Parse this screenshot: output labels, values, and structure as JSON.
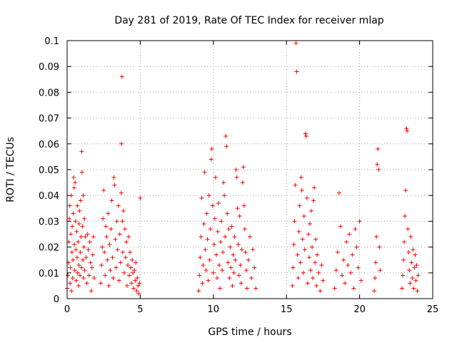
{
  "chart_data": {
    "type": "scatter",
    "title": "Day 281 of 2019, Rate Of TEC Index for receiver mlap",
    "xlabel": "GPS time / hours",
    "ylabel": "ROTI / TECUs",
    "xlim": [
      0,
      25
    ],
    "ylim": [
      0,
      0.1
    ],
    "xticks": [
      "0",
      "5",
      "10",
      "15",
      "20",
      "25"
    ],
    "yticks": [
      "0",
      "0.01",
      "0.02",
      "0.03",
      "0.04",
      "0.05",
      "0.06",
      "0.07",
      "0.08",
      "0.09",
      "0.1"
    ],
    "grid": true,
    "marker": "+",
    "color": "#ff0000",
    "series": [
      {
        "values": [
          [
            0.0,
            0.004
          ],
          [
            0.05,
            0.009
          ],
          [
            0.1,
            0.014
          ],
          [
            0.12,
            0.022
          ],
          [
            0.15,
            0.031
          ],
          [
            0.18,
            0.036
          ],
          [
            0.2,
            0.006
          ],
          [
            0.22,
            0.012
          ],
          [
            0.25,
            0.025
          ],
          [
            0.28,
            0.04
          ],
          [
            0.3,
            0.003
          ],
          [
            0.33,
            0.018
          ],
          [
            0.35,
            0.028
          ],
          [
            0.38,
            0.008
          ],
          [
            0.4,
            0.015
          ],
          [
            0.42,
            0.033
          ],
          [
            0.45,
            0.047
          ],
          [
            0.48,
            0.043
          ],
          [
            0.5,
            0.021
          ],
          [
            0.52,
            0.011
          ],
          [
            0.55,
            0.045
          ],
          [
            0.58,
            0.03
          ],
          [
            0.6,
            0.019
          ],
          [
            0.62,
            0.007
          ],
          [
            0.65,
            0.026
          ],
          [
            0.68,
            0.016
          ],
          [
            0.7,
            0.036
          ],
          [
            0.72,
            0.01
          ],
          [
            0.75,
            0.022
          ],
          [
            0.78,
            0.005
          ],
          [
            0.8,
            0.013
          ],
          [
            0.82,
            0.029
          ],
          [
            0.85,
            0.034
          ],
          [
            0.88,
            0.009
          ],
          [
            0.9,
            0.018
          ],
          [
            0.92,
            0.038
          ],
          [
            0.95,
            0.024
          ],
          [
            0.98,
            0.012
          ],
          [
            1.0,
            0.057
          ],
          [
            1.02,
            0.049
          ],
          [
            1.05,
            0.028
          ],
          [
            1.08,
            0.015
          ],
          [
            1.1,
            0.04
          ],
          [
            1.12,
            0.008
          ],
          [
            1.15,
            0.02
          ],
          [
            1.18,
            0.031
          ],
          [
            1.2,
            0.011
          ],
          [
            1.25,
            0.024
          ],
          [
            1.3,
            0.016
          ],
          [
            1.35,
            0.006
          ],
          [
            1.4,
            0.025
          ],
          [
            1.45,
            0.019
          ],
          [
            1.5,
            0.009
          ],
          [
            1.55,
            0.022
          ],
          [
            1.6,
            0.014
          ],
          [
            1.65,
            0.003
          ],
          [
            1.7,
            0.012
          ],
          [
            1.75,
            0.017
          ],
          [
            1.8,
            0.024
          ],
          [
            1.85,
            0.008
          ],
          [
            2.3,
            0.006
          ],
          [
            2.35,
            0.013
          ],
          [
            2.4,
            0.02
          ],
          [
            2.45,
            0.031
          ],
          [
            2.5,
            0.042
          ],
          [
            2.55,
            0.018
          ],
          [
            2.6,
            0.009
          ],
          [
            2.65,
            0.028
          ],
          [
            2.7,
            0.024
          ],
          [
            2.75,
            0.015
          ],
          [
            2.8,
            0.033
          ],
          [
            2.85,
            0.005
          ],
          [
            2.9,
            0.021
          ],
          [
            2.95,
            0.011
          ],
          [
            3.0,
            0.027
          ],
          [
            3.05,
            0.038
          ],
          [
            3.1,
            0.016
          ],
          [
            3.15,
            0.008
          ],
          [
            3.2,
            0.047
          ],
          [
            3.25,
            0.044
          ],
          [
            3.3,
            0.023
          ],
          [
            3.35,
            0.012
          ],
          [
            3.4,
            0.03
          ],
          [
            3.45,
            0.019
          ],
          [
            3.5,
            0.036
          ],
          [
            3.55,
            0.007
          ],
          [
            3.6,
            0.025
          ],
          [
            3.65,
            0.014
          ],
          [
            3.7,
            0.041
          ],
          [
            3.72,
            0.06
          ],
          [
            3.75,
            0.086
          ],
          [
            3.78,
            0.03
          ],
          [
            3.8,
            0.018
          ],
          [
            3.85,
            0.034
          ],
          [
            3.9,
            0.01
          ],
          [
            3.95,
            0.027
          ],
          [
            4.0,
            0.016
          ],
          [
            4.05,
            0.022
          ],
          [
            4.1,
            0.005
          ],
          [
            4.15,
            0.013
          ],
          [
            4.2,
            0.024
          ],
          [
            4.25,
            0.009
          ],
          [
            4.3,
            0.018
          ],
          [
            4.35,
            0.012
          ],
          [
            4.4,
            0.006
          ],
          [
            4.45,
            0.015
          ],
          [
            4.5,
            0.01
          ],
          [
            4.55,
            0.004
          ],
          [
            4.6,
            0.011
          ],
          [
            4.65,
            0.007
          ],
          [
            4.7,
            0.014
          ],
          [
            4.75,
            0.003
          ],
          [
            4.8,
            0.008
          ],
          [
            4.85,
            0.005
          ],
          [
            4.9,
            0.002
          ],
          [
            4.95,
            0.006
          ],
          [
            5.0,
            0.039
          ],
          [
            9.0,
            0.003
          ],
          [
            9.05,
            0.009
          ],
          [
            9.1,
            0.016
          ],
          [
            9.15,
            0.024
          ],
          [
            9.2,
            0.039
          ],
          [
            9.25,
            0.006
          ],
          [
            9.3,
            0.013
          ],
          [
            9.35,
            0.029
          ],
          [
            9.4,
            0.049
          ],
          [
            9.45,
            0.019
          ],
          [
            9.5,
            0.011
          ],
          [
            9.55,
            0.033
          ],
          [
            9.6,
            0.023
          ],
          [
            9.65,
            0.007
          ],
          [
            9.7,
            0.04
          ],
          [
            9.75,
            0.015
          ],
          [
            9.8,
            0.027
          ],
          [
            9.85,
            0.054
          ],
          [
            9.9,
            0.058
          ],
          [
            9.95,
            0.036
          ],
          [
            10.0,
            0.01
          ],
          [
            10.05,
            0.021
          ],
          [
            10.1,
            0.031
          ],
          [
            10.15,
            0.047
          ],
          [
            10.2,
            0.017
          ],
          [
            10.25,
            0.008
          ],
          [
            10.3,
            0.026
          ],
          [
            10.35,
            0.037
          ],
          [
            10.4,
            0.013
          ],
          [
            10.45,
            0.004
          ],
          [
            10.5,
            0.022
          ],
          [
            10.55,
            0.03
          ],
          [
            10.6,
            0.011
          ],
          [
            10.65,
            0.018
          ],
          [
            10.7,
            0.045
          ],
          [
            10.75,
            0.04
          ],
          [
            10.8,
            0.024
          ],
          [
            10.85,
            0.063
          ],
          [
            10.9,
            0.059
          ],
          [
            10.95,
            0.033
          ],
          [
            11.0,
            0.014
          ],
          [
            11.05,
            0.027
          ],
          [
            11.1,
            0.008
          ],
          [
            11.15,
            0.02
          ],
          [
            11.2,
            0.012
          ],
          [
            11.25,
            0.028
          ],
          [
            11.3,
            0.005
          ],
          [
            11.35,
            0.017
          ],
          [
            11.4,
            0.01
          ],
          [
            11.45,
            0.024
          ],
          [
            11.5,
            0.015
          ],
          [
            11.55,
            0.05
          ],
          [
            11.6,
            0.047
          ],
          [
            11.65,
            0.035
          ],
          [
            11.7,
            0.021
          ],
          [
            11.75,
            0.009
          ],
          [
            11.8,
            0.032
          ],
          [
            11.85,
            0.013
          ],
          [
            11.9,
            0.006
          ],
          [
            11.95,
            0.019
          ],
          [
            12.0,
            0.045
          ],
          [
            12.05,
            0.051
          ],
          [
            12.1,
            0.036
          ],
          [
            12.15,
            0.027
          ],
          [
            12.2,
            0.018
          ],
          [
            12.25,
            0.011
          ],
          [
            12.3,
            0.004
          ],
          [
            12.4,
            0.015
          ],
          [
            12.5,
            0.024
          ],
          [
            12.6,
            0.008
          ],
          [
            12.7,
            0.019
          ],
          [
            12.8,
            0.012
          ],
          [
            12.9,
            0.004
          ],
          [
            15.4,
            0.005
          ],
          [
            15.45,
            0.012
          ],
          [
            15.5,
            0.021
          ],
          [
            15.55,
            0.03
          ],
          [
            15.6,
            0.044
          ],
          [
            15.65,
            0.099
          ],
          [
            15.7,
            0.088
          ],
          [
            15.75,
            0.017
          ],
          [
            15.8,
            0.008
          ],
          [
            15.85,
            0.026
          ],
          [
            15.9,
            0.036
          ],
          [
            15.95,
            0.014
          ],
          [
            16.0,
            0.047
          ],
          [
            16.05,
            0.042
          ],
          [
            16.1,
            0.023
          ],
          [
            16.15,
            0.01
          ],
          [
            16.2,
            0.032
          ],
          [
            16.25,
            0.019
          ],
          [
            16.3,
            0.064
          ],
          [
            16.35,
            0.063
          ],
          [
            16.4,
            0.039
          ],
          [
            16.45,
            0.006
          ],
          [
            16.5,
            0.025
          ],
          [
            16.55,
            0.016
          ],
          [
            16.6,
            0.029
          ],
          [
            16.65,
            0.011
          ],
          [
            16.7,
            0.034
          ],
          [
            16.75,
            0.02
          ],
          [
            16.8,
            0.008
          ],
          [
            16.85,
            0.038
          ],
          [
            16.9,
            0.043
          ],
          [
            16.95,
            0.014
          ],
          [
            17.0,
            0.023
          ],
          [
            17.05,
            0.005
          ],
          [
            17.1,
            0.017
          ],
          [
            17.2,
            0.01
          ],
          [
            17.3,
            0.003
          ],
          [
            17.4,
            0.013
          ],
          [
            17.5,
            0.007
          ],
          [
            18.3,
            0.004
          ],
          [
            18.4,
            0.011
          ],
          [
            18.5,
            0.018
          ],
          [
            18.6,
            0.041
          ],
          [
            18.7,
            0.028
          ],
          [
            18.8,
            0.009
          ],
          [
            18.9,
            0.015
          ],
          [
            19.0,
            0.006
          ],
          [
            19.1,
            0.022
          ],
          [
            19.2,
            0.013
          ],
          [
            19.3,
            0.025
          ],
          [
            19.4,
            0.01
          ],
          [
            19.5,
            0.017
          ],
          [
            19.6,
            0.004
          ],
          [
            19.7,
            0.027
          ],
          [
            19.8,
            0.02
          ],
          [
            19.9,
            0.012
          ],
          [
            20.0,
            0.03
          ],
          [
            20.1,
            0.007
          ],
          [
            21.0,
            0.003
          ],
          [
            21.05,
            0.008
          ],
          [
            21.1,
            0.014
          ],
          [
            21.15,
            0.024
          ],
          [
            21.2,
            0.052
          ],
          [
            21.25,
            0.058
          ],
          [
            21.3,
            0.05
          ],
          [
            21.35,
            0.02
          ],
          [
            21.4,
            0.011
          ],
          [
            22.9,
            0.004
          ],
          [
            22.95,
            0.009
          ],
          [
            23.0,
            0.015
          ],
          [
            23.05,
            0.022
          ],
          [
            23.1,
            0.032
          ],
          [
            23.15,
            0.042
          ],
          [
            23.2,
            0.066
          ],
          [
            23.25,
            0.065
          ],
          [
            23.3,
            0.027
          ],
          [
            23.35,
            0.018
          ],
          [
            23.4,
            0.011
          ],
          [
            23.45,
            0.006
          ],
          [
            23.5,
            0.024
          ],
          [
            23.55,
            0.014
          ],
          [
            23.6,
            0.008
          ],
          [
            23.65,
            0.019
          ],
          [
            23.7,
            0.004
          ],
          [
            23.75,
            0.012
          ],
          [
            23.8,
            0.017
          ],
          [
            23.85,
            0.007
          ],
          [
            23.9,
            0.013
          ],
          [
            23.95,
            0.003
          ],
          [
            24.0,
            0.009
          ]
        ]
      }
    ]
  }
}
